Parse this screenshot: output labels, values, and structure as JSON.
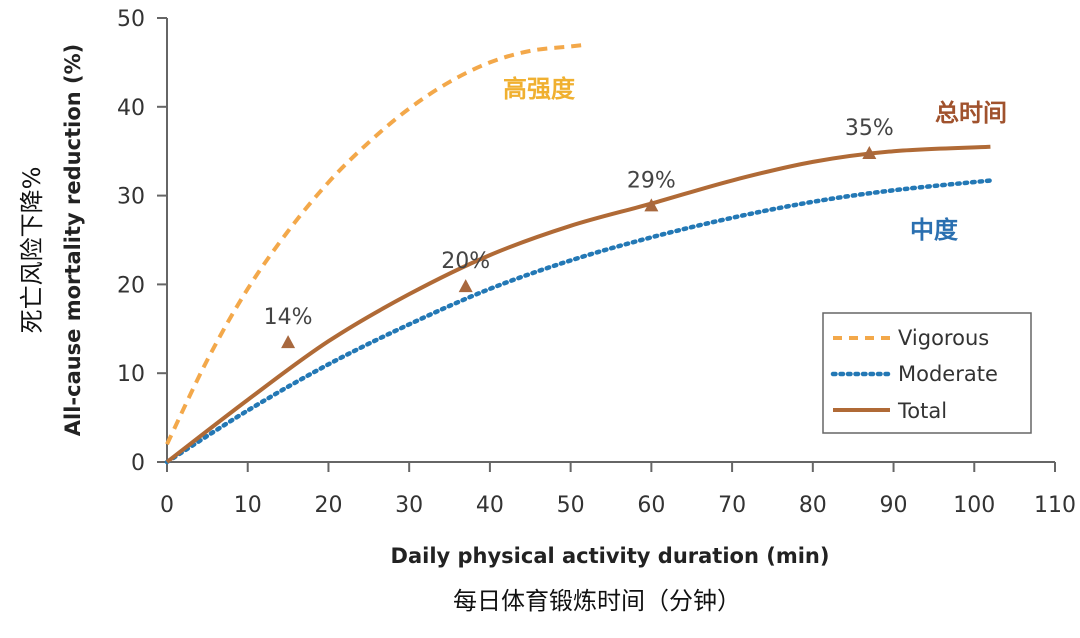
{
  "chart_data": {
    "type": "line",
    "xlabel": "Daily physical activity duration (min)",
    "xlabel_zh": "每日体育锻炼时间（分钟）",
    "ylabel": "All-cause mortality reduction (%)",
    "ylabel_zh": "死亡风险下降%",
    "xlim": [
      0,
      110
    ],
    "ylim": [
      0,
      50
    ],
    "xticks": [
      0,
      10,
      20,
      30,
      40,
      50,
      60,
      70,
      80,
      90,
      100,
      110
    ],
    "yticks": [
      0,
      10,
      20,
      30,
      40,
      50
    ],
    "grid": false,
    "legend_position": "bottom-right",
    "series": [
      {
        "name": "Vigorous",
        "label_zh": "高强度",
        "color": "#f3a84a",
        "style": "dashed",
        "x": [
          0,
          5,
          10,
          15,
          20,
          25,
          30,
          35,
          40,
          45,
          50,
          52
        ],
        "y": [
          2,
          11.5,
          19.5,
          26,
          31.5,
          36,
          39.8,
          42.8,
          45,
          46.3,
          46.8,
          47
        ]
      },
      {
        "name": "Moderate",
        "label_zh": "中度",
        "color": "#2378b5",
        "style": "dotted",
        "x": [
          0,
          10,
          20,
          30,
          40,
          50,
          60,
          70,
          80,
          90,
          102
        ],
        "y": [
          0,
          5.8,
          11,
          15.5,
          19.5,
          22.7,
          25.3,
          27.5,
          29.3,
          30.6,
          31.7
        ]
      },
      {
        "name": "Total",
        "label_zh": "总时间",
        "color": "#b06a36",
        "style": "solid",
        "x": [
          0,
          10,
          20,
          30,
          40,
          50,
          60,
          70,
          80,
          90,
          102
        ],
        "y": [
          0,
          7,
          13.6,
          18.9,
          23.3,
          26.6,
          29.1,
          31.7,
          33.8,
          35,
          35.5
        ]
      }
    ],
    "markers": [
      {
        "x": 15,
        "y": 13.5,
        "label": "14%"
      },
      {
        "x": 37,
        "y": 19.8,
        "label": "20%"
      },
      {
        "x": 60,
        "y": 28.9,
        "label": "29%"
      },
      {
        "x": 87,
        "y": 34.8,
        "label": "35%"
      }
    ],
    "marker_color": "#a8683e"
  }
}
